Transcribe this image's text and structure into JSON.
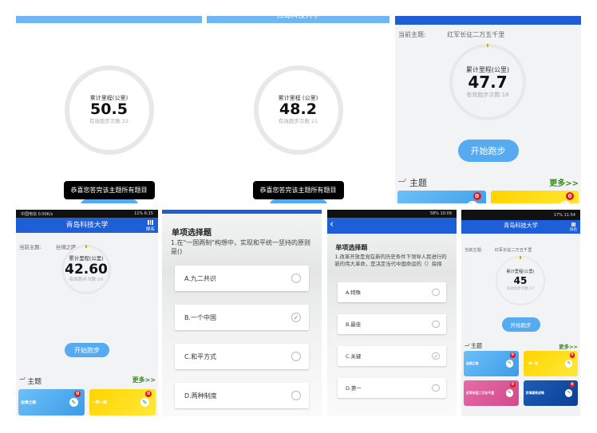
{
  "colors": {
    "header_dark": "#1e5fd8",
    "header_light": "#6fb6f5",
    "button": "#55aaf0",
    "more": "#3a8a22",
    "badge": "#e4161b"
  },
  "panels": [
    {
      "type": "simple",
      "circle_title": "累计里程(公里)",
      "distance": "50.5",
      "runs_label": "有效跑步次数 22",
      "toast": "恭喜您答完该主题所有题目"
    },
    {
      "type": "simple",
      "header_title": "青岛科技大学",
      "circle_title": "累计里程 (公里)",
      "distance": "48.2",
      "runs_label": "有效跑步次数 21",
      "toast": "恭喜您答完该主题所有题目"
    },
    {
      "type": "home",
      "topic_label": "当前主题:",
      "topic_value": "红军长征二万五千里",
      "circle_title": "累计里程(公里)",
      "distance": "47.7",
      "runs_label": "有效跑步次数:18",
      "start_button": "开始跑步",
      "theme_label": "主题",
      "more_link": "更多>>",
      "tiles": [
        {
          "name": "",
          "badge": "0",
          "color": "blue"
        },
        {
          "name": "",
          "badge": "0",
          "color": "yellow"
        }
      ]
    },
    {
      "type": "home",
      "status": {
        "left": "中国电信 0.00K/s",
        "right": "11% 6:15"
      },
      "header_title": "青岛科技大学",
      "ranking": "排名",
      "topic_label": "当前主题:",
      "topic_value": "丝绸之路",
      "circle_title": "累计里程(公里)",
      "distance": "42.60",
      "runs_label": "有效跑步次数:20",
      "start_button": "开始跑步",
      "theme_label": "主题",
      "more_link": "更多>>",
      "tiles": [
        {
          "name": "丝绸之路",
          "badge": "0",
          "color": "blue"
        },
        {
          "name": "一带一路",
          "badge": "0",
          "color": "yellow"
        }
      ]
    },
    {
      "type": "quiz",
      "heading": "单项选择题",
      "question": "1.在\"一国两制\"构想中，实现和平统一坚持的原则是()",
      "options": [
        {
          "label": "A.九二共识",
          "checked": false
        },
        {
          "label": "B.一个中国",
          "checked": true
        },
        {
          "label": "C.和平方式",
          "checked": false
        },
        {
          "label": "D.两种制度",
          "checked": false
        }
      ]
    },
    {
      "type": "quiz",
      "status": {
        "left": "",
        "right": "58% 10:09"
      },
      "heading": "单项选择题",
      "question": "1.改革开放是党在新的历史条件下领导人民进行的新的伟大革命，是决定当代中国命运的（）抉择",
      "options": [
        {
          "label": "A.特殊",
          "checked": false
        },
        {
          "label": "B.最佳",
          "checked": false
        },
        {
          "label": "C.关键",
          "checked": true
        },
        {
          "label": "D.第一",
          "checked": false
        }
      ]
    },
    {
      "type": "home",
      "status": {
        "left": "",
        "right": "17% 11:54"
      },
      "header_title": "青岛科技大学",
      "ranking": "排名",
      "topic_label": "当前主题:",
      "topic_value": "红军长征二万五千里",
      "circle_title": "累计里程(公里)",
      "distance": "45",
      "runs_label": "有效跑步次数:17",
      "start_button": "开始跑步",
      "theme_label": "主题",
      "more_link": "更多>>",
      "tiles": [
        {
          "name": "丝绸之路",
          "badge": "0",
          "color": "blue"
        },
        {
          "name": "一带一路",
          "badge": "0",
          "color": "yellow"
        },
        {
          "name": "红军长征二万五千里",
          "badge": "0",
          "color": "pink"
        },
        {
          "name": "京津冀铁战略",
          "badge": "0",
          "color": "navy"
        }
      ]
    }
  ]
}
